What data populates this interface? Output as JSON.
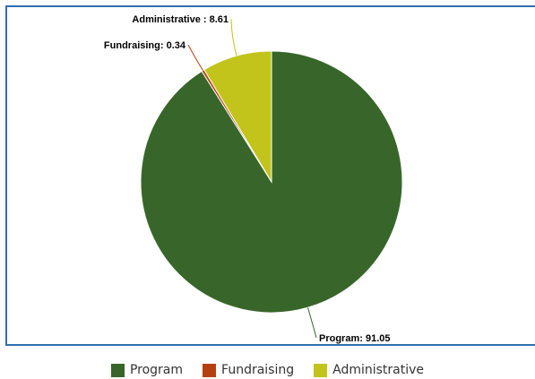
{
  "chart_data": {
    "type": "pie",
    "title": "",
    "slices": [
      {
        "label": "Program",
        "value": 91.05,
        "color": "#38662a",
        "data_label": "Program: 91.05"
      },
      {
        "label": "Fundraising",
        "value": 0.34,
        "color": "#b5400f",
        "data_label": "Fundraising: 0.34"
      },
      {
        "label": "Administrative",
        "value": 8.61,
        "color": "#c2c41c",
        "data_label": "Administrative : 8.61"
      }
    ],
    "legend_placement": "bottom-center",
    "frame_color": "#2f6fb0"
  }
}
